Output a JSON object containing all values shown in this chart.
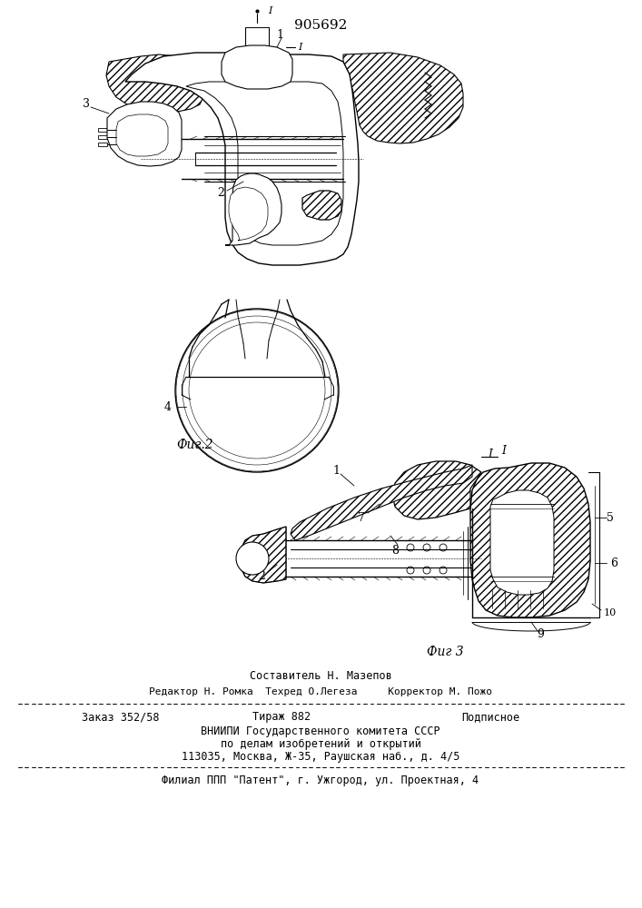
{
  "patent_number": "905692",
  "fig2_label": "Фиг.2",
  "fig3_label": "Фиг 3",
  "footer_compositor": "Составитель Н. Мазепов",
  "footer_editor": "Редактор Н. Ромка  Техред О.Легеза     Корректор М. Пожо",
  "footer_order": "Заказ 352/58",
  "footer_tirazh": "Тираж 882",
  "footer_podp": "Подписное",
  "footer_vniip1": "ВНИИПИ Государственного комитета СССР",
  "footer_vniip2": "по делам изобретений и открытий",
  "footer_addr": "113035, Москва, Ж-35, Раушская наб., д. 4/5",
  "footer_filial": "Филиал ППП \"Патент\", г. Ужгород, ул. Проектная, 4",
  "bg_color": "#ffffff"
}
